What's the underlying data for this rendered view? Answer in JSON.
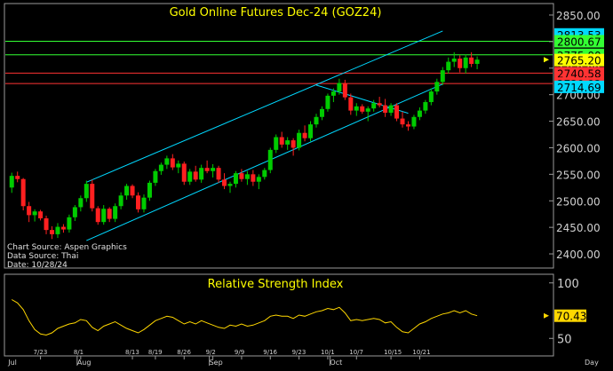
{
  "colors": {
    "up": "#00cc00",
    "down": "#ff2020",
    "channel": "#00d8ff",
    "resistance": "#33ff33",
    "support": "#ff3333",
    "title": "#ffff00",
    "rsi": "#ffd700",
    "frame": "#9a9a9a",
    "axis_text": "#d0d0d0"
  },
  "chart_data": [
    {
      "type": "candlestick",
      "title": "Gold Online Futures Dec-24 (GOZ24)",
      "source_lines": [
        "Chart Source: Aspen Graphics",
        "Data Source: Thai",
        "Date: 10/28/24"
      ],
      "ylim": [
        2375,
        2870
      ],
      "yticks": [
        2400,
        2450,
        2500,
        2550,
        2600,
        2650,
        2700,
        2750,
        2800,
        2850
      ],
      "yticklabels": [
        "2400.00",
        "2450.00",
        "2500.00",
        "2550.00",
        "2600.00",
        "2650.00",
        "2700.00",
        "2750.00",
        "2800.00",
        "2850.00"
      ],
      "n_bars": 92,
      "xticks": [
        {
          "i": 5,
          "label": "7/23"
        },
        {
          "i": 12,
          "label": "8/1"
        },
        {
          "i": 21,
          "label": "8/13"
        },
        {
          "i": 25,
          "label": "8/19"
        },
        {
          "i": 30,
          "label": "8/26"
        },
        {
          "i": 35,
          "label": "9/2"
        },
        {
          "i": 40,
          "label": "9/9"
        },
        {
          "i": 45,
          "label": "9/16"
        },
        {
          "i": 50,
          "label": "9/23"
        },
        {
          "i": 55,
          "label": "10/1"
        },
        {
          "i": 60,
          "label": "10/7"
        },
        {
          "i": 66,
          "label": "10/15"
        },
        {
          "i": 71,
          "label": "10/21"
        }
      ],
      "month_labels": [
        {
          "i": 0,
          "label": "Jul"
        },
        {
          "i": 12,
          "label": "Aug"
        },
        {
          "i": 35,
          "label": "Sep"
        },
        {
          "i": 56,
          "label": "Oct"
        },
        {
          "i": 92,
          "label": "Day"
        }
      ],
      "levels": [
        {
          "value": 2813.53,
          "label": "2813.53",
          "bg": "#00d8ff"
        },
        {
          "value": 2800.67,
          "label": "2800.67",
          "bg": "#33ff33"
        },
        {
          "value": 2775.0,
          "label": "2775.00",
          "bg": "#33ff33"
        },
        {
          "value": 2765.2,
          "label": "2765.20",
          "bg": "#ffff00"
        },
        {
          "value": 2740.58,
          "label": "2740.58",
          "bg": "#ff3333"
        },
        {
          "value": 2720.92,
          "label": "2720.92",
          "bg": "#ff3333"
        },
        {
          "value": 2714.69,
          "label": "2714.69",
          "bg": "#00d8ff"
        }
      ],
      "horizontal_lines": [
        {
          "value": 2800.67,
          "kind": "resistance"
        },
        {
          "value": 2775.0,
          "kind": "resistance"
        },
        {
          "value": 2740.58,
          "kind": "support"
        },
        {
          "value": 2720.92,
          "kind": "support"
        }
      ],
      "trendlines": [
        {
          "from": [
            13,
            2535
          ],
          "to": [
            75,
            2820
          ]
        },
        {
          "from": [
            13,
            2425
          ],
          "to": [
            75,
            2720
          ]
        },
        {
          "from": [
            53,
            2718
          ],
          "to": [
            69,
            2665
          ]
        }
      ],
      "candles": [
        [
          2525,
          2553,
          2515,
          2547
        ],
        [
          2547,
          2555,
          2535,
          2541
        ],
        [
          2541,
          2543,
          2482,
          2490
        ],
        [
          2490,
          2498,
          2460,
          2473
        ],
        [
          2473,
          2484,
          2461,
          2480
        ],
        [
          2480,
          2483,
          2463,
          2467
        ],
        [
          2467,
          2472,
          2437,
          2445
        ],
        [
          2445,
          2452,
          2428,
          2437
        ],
        [
          2437,
          2458,
          2430,
          2451
        ],
        [
          2451,
          2456,
          2440,
          2446
        ],
        [
          2446,
          2474,
          2440,
          2469
        ],
        [
          2469,
          2492,
          2462,
          2488
        ],
        [
          2488,
          2510,
          2480,
          2505
        ],
        [
          2505,
          2538,
          2498,
          2532
        ],
        [
          2532,
          2540,
          2480,
          2486
        ],
        [
          2486,
          2490,
          2455,
          2460
        ],
        [
          2460,
          2492,
          2455,
          2485
        ],
        [
          2485,
          2488,
          2460,
          2466
        ],
        [
          2466,
          2495,
          2460,
          2490
        ],
        [
          2490,
          2516,
          2484,
          2510
        ],
        [
          2510,
          2532,
          2502,
          2528
        ],
        [
          2528,
          2531,
          2505,
          2510
        ],
        [
          2510,
          2516,
          2478,
          2484
        ],
        [
          2484,
          2512,
          2478,
          2506
        ],
        [
          2506,
          2538,
          2500,
          2534
        ],
        [
          2534,
          2560,
          2528,
          2556
        ],
        [
          2556,
          2572,
          2549,
          2568
        ],
        [
          2568,
          2585,
          2560,
          2580
        ],
        [
          2580,
          2588,
          2558,
          2563
        ],
        [
          2563,
          2576,
          2552,
          2570
        ],
        [
          2570,
          2574,
          2530,
          2536
        ],
        [
          2536,
          2560,
          2530,
          2555
        ],
        [
          2555,
          2566,
          2536,
          2540
        ],
        [
          2540,
          2568,
          2534,
          2562
        ],
        [
          2562,
          2576,
          2552,
          2556
        ],
        [
          2556,
          2569,
          2544,
          2562
        ],
        [
          2562,
          2566,
          2534,
          2540
        ],
        [
          2540,
          2552,
          2522,
          2528
        ],
        [
          2528,
          2536,
          2515,
          2532
        ],
        [
          2532,
          2556,
          2525,
          2552
        ],
        [
          2552,
          2560,
          2536,
          2541
        ],
        [
          2541,
          2556,
          2530,
          2550
        ],
        [
          2550,
          2558,
          2528,
          2536
        ],
        [
          2536,
          2550,
          2522,
          2545
        ],
        [
          2545,
          2562,
          2540,
          2558
        ],
        [
          2558,
          2600,
          2552,
          2596
        ],
        [
          2596,
          2625,
          2590,
          2620
        ],
        [
          2620,
          2630,
          2600,
          2606
        ],
        [
          2606,
          2620,
          2596,
          2614
        ],
        [
          2614,
          2618,
          2585,
          2600
        ],
        [
          2600,
          2634,
          2595,
          2628
        ],
        [
          2628,
          2642,
          2612,
          2618
        ],
        [
          2618,
          2650,
          2612,
          2644
        ],
        [
          2644,
          2664,
          2638,
          2658
        ],
        [
          2658,
          2678,
          2652,
          2673
        ],
        [
          2673,
          2702,
          2668,
          2698
        ],
        [
          2698,
          2712,
          2686,
          2706
        ],
        [
          2706,
          2730,
          2700,
          2722
        ],
        [
          2722,
          2728,
          2690,
          2695
        ],
        [
          2695,
          2702,
          2662,
          2670
        ],
        [
          2670,
          2684,
          2660,
          2678
        ],
        [
          2678,
          2682,
          2664,
          2668
        ],
        [
          2668,
          2678,
          2650,
          2674
        ],
        [
          2674,
          2690,
          2668,
          2684
        ],
        [
          2684,
          2696,
          2676,
          2680
        ],
        [
          2680,
          2692,
          2658,
          2666
        ],
        [
          2666,
          2684,
          2660,
          2680
        ],
        [
          2680,
          2684,
          2650,
          2655
        ],
        [
          2655,
          2668,
          2638,
          2644
        ],
        [
          2644,
          2650,
          2632,
          2640
        ],
        [
          2640,
          2662,
          2635,
          2658
        ],
        [
          2658,
          2676,
          2652,
          2670
        ],
        [
          2670,
          2690,
          2664,
          2686
        ],
        [
          2686,
          2712,
          2680,
          2706
        ],
        [
          2706,
          2730,
          2700,
          2724
        ],
        [
          2724,
          2752,
          2718,
          2746
        ],
        [
          2746,
          2770,
          2740,
          2762
        ],
        [
          2762,
          2780,
          2752,
          2768
        ],
        [
          2768,
          2774,
          2742,
          2750
        ],
        [
          2750,
          2776,
          2740,
          2770
        ],
        [
          2770,
          2780,
          2752,
          2758
        ],
        [
          2758,
          2772,
          2748,
          2766
        ]
      ]
    },
    {
      "type": "line",
      "title": "Relative Strength Index",
      "current_label": "70.43",
      "current_value": 70.43,
      "ylim": [
        35,
        107
      ],
      "yticks": [
        50,
        100
      ],
      "yticklabels": [
        "50",
        "100"
      ],
      "values": [
        85,
        82,
        76,
        66,
        58,
        54,
        53,
        55,
        59,
        61,
        63,
        64,
        67,
        66,
        60,
        57,
        61,
        63,
        65,
        62,
        59,
        57,
        55,
        58,
        62,
        66,
        68,
        70,
        69,
        66,
        63,
        65,
        63,
        66,
        64,
        62,
        60,
        59,
        62,
        61,
        63,
        61,
        62,
        64,
        66,
        70,
        71,
        70,
        70,
        68,
        71,
        70,
        72,
        74,
        75,
        77,
        76,
        78,
        73,
        66,
        67,
        66,
        67,
        68,
        67,
        64,
        65,
        60,
        56,
        55,
        59,
        63,
        65,
        68,
        70,
        72,
        73,
        75,
        73,
        75,
        72,
        70.43
      ]
    }
  ]
}
